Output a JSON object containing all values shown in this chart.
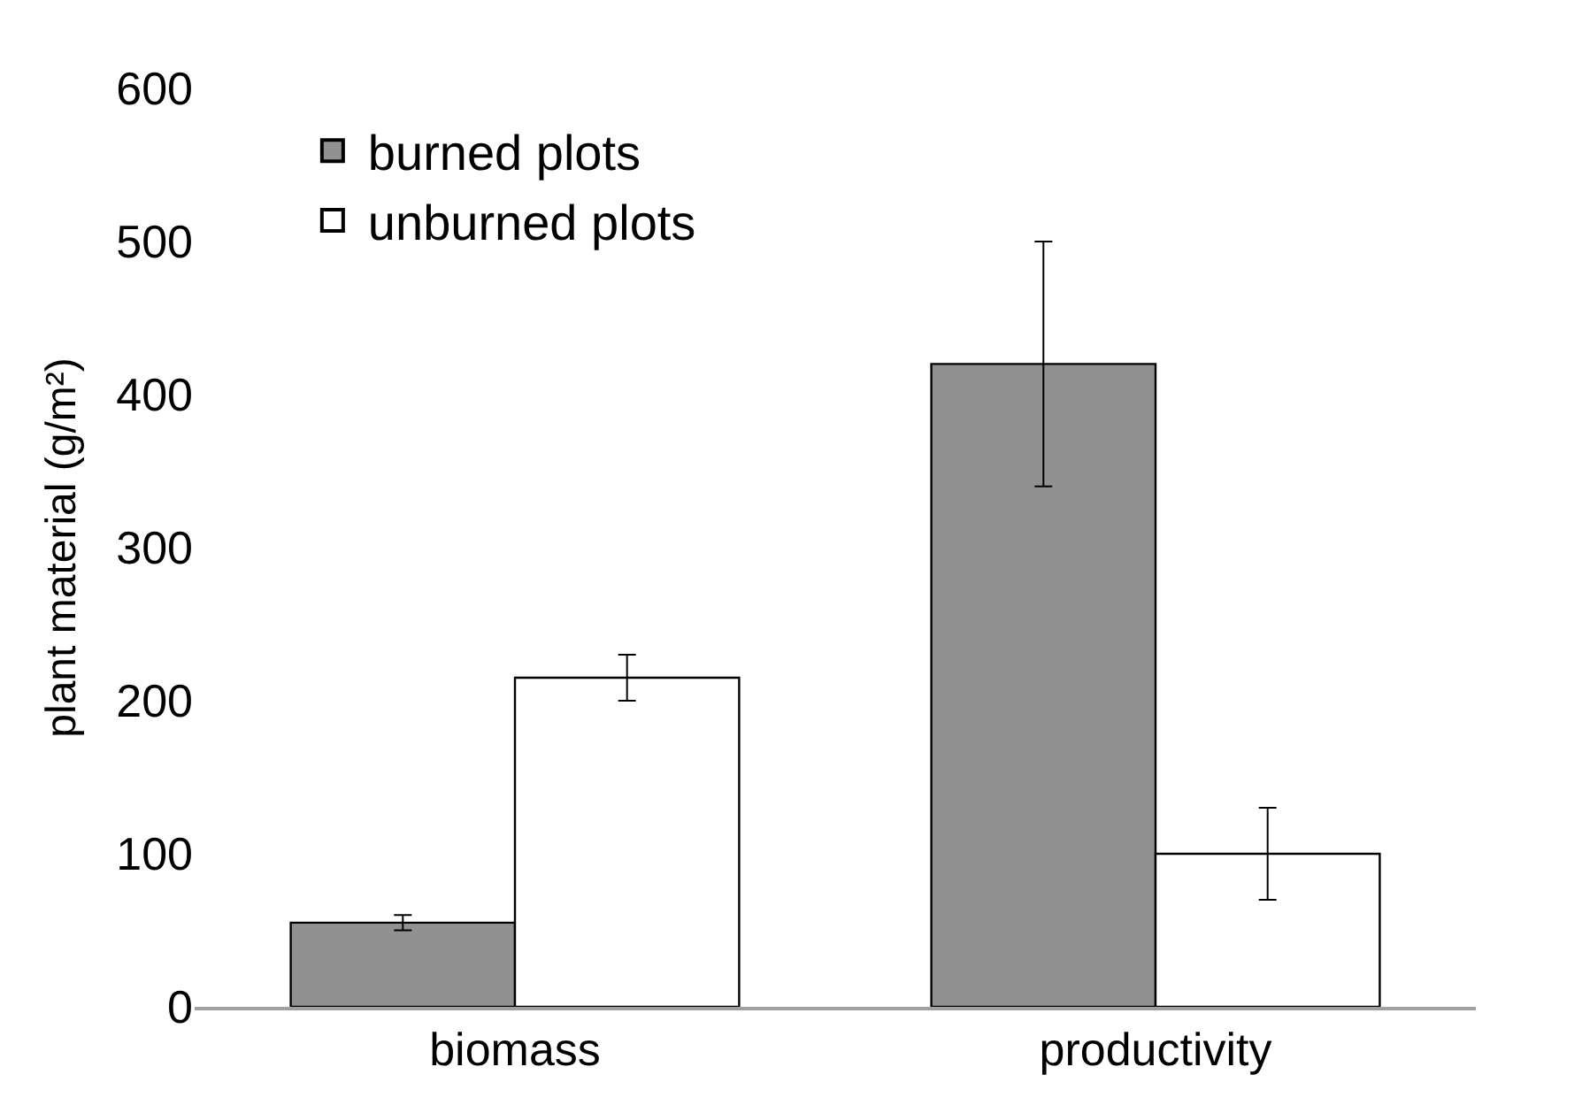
{
  "chart_data": {
    "type": "bar",
    "ylabel": "plant material (g/m²)",
    "categories": [
      "biomass",
      "productivity"
    ],
    "series": [
      {
        "name": "burned plots",
        "color": "#919191",
        "values": [
          55,
          420
        ],
        "errors": [
          5,
          80
        ]
      },
      {
        "name": "unburned plots",
        "color": "#ffffff",
        "values": [
          215,
          100
        ],
        "errors": [
          15,
          30
        ]
      }
    ],
    "ylim": [
      0,
      600
    ],
    "yticks": [
      0,
      100,
      200,
      300,
      400,
      500,
      600
    ],
    "legend": "top left"
  }
}
